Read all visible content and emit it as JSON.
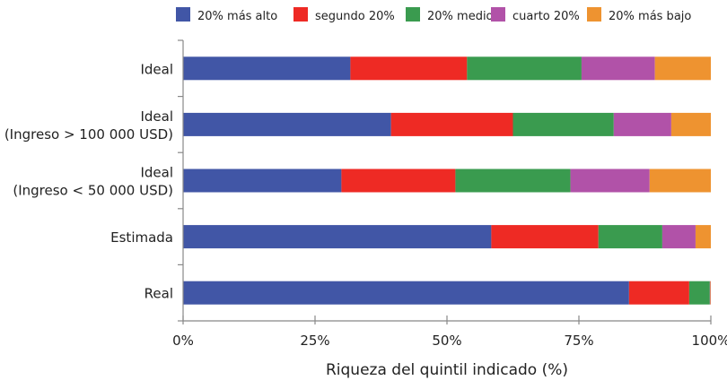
{
  "chart_data": {
    "type": "bar",
    "orientation": "horizontal",
    "stacked": true,
    "categories": [
      [
        "Ideal"
      ],
      [
        "Ideal",
        "(Ingreso > 100 000 USD)"
      ],
      [
        "Ideal",
        "(Ingreso < 50 000 USD)"
      ],
      [
        "Estimada"
      ],
      [
        "Real"
      ]
    ],
    "series": [
      {
        "name": "20% más alto",
        "color": "#4156a6",
        "values": [
          31.7,
          39.4,
          30.0,
          58.4,
          84.5
        ]
      },
      {
        "name": "segundo 20%",
        "color": "#ee2a24",
        "values": [
          22.1,
          23.1,
          21.6,
          20.3,
          11.4
        ]
      },
      {
        "name": "20% medio",
        "color": "#3a9b4f",
        "values": [
          21.7,
          19.1,
          21.8,
          12.1,
          3.9
        ]
      },
      {
        "name": "cuarto 20%",
        "color": "#b152a8",
        "values": [
          13.9,
          10.9,
          15.0,
          6.3,
          0.1
        ]
      },
      {
        "name": "20% más bajo",
        "color": "#ee9330",
        "values": [
          10.6,
          7.5,
          11.6,
          2.9,
          0.1
        ]
      }
    ],
    "xlabel": "Riqueza del quintil indicado (%)",
    "xlim": [
      0,
      100
    ],
    "xticks": [
      "0%",
      "25%",
      "50%",
      "75%",
      "100%"
    ],
    "grid": false,
    "legend": "top"
  }
}
